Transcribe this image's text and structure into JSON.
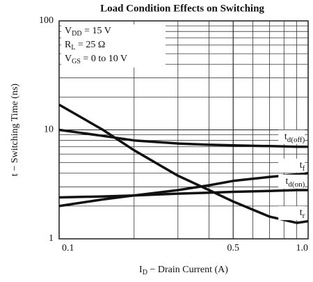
{
  "chart_data": {
    "type": "line",
    "title": "Load Condition Effects on Switching",
    "xlabel": {
      "symbol": "I",
      "sub": "D",
      "text": "  −  Drain Current (A)"
    },
    "ylabel": "t  −  Switching Time (ns)",
    "annotations": [
      {
        "symbol": "V",
        "sub": "DD",
        "text": " = 15 V"
      },
      {
        "symbol": "R",
        "sub": "L",
        "text": " = 25 Ω"
      },
      {
        "symbol": "V",
        "sub": "GS",
        "text": " = 0 to 10 V"
      }
    ],
    "xscale": "log",
    "yscale": "log",
    "grid": true,
    "minor_grid": true,
    "xlim": [
      0.1,
      1.0
    ],
    "ylim": [
      1,
      100
    ],
    "xticks": [
      0.1,
      0.5,
      {
        "value": 1.0,
        "label": "1.0"
      }
    ],
    "yticks": [
      1,
      10,
      100
    ],
    "x": [
      0.1,
      0.15,
      0.2,
      0.3,
      0.4,
      0.5,
      0.7,
      0.9,
      1.0
    ],
    "series": [
      {
        "name": "td(off)",
        "color": "#111111",
        "values": [
          10,
          8.8,
          8.0,
          7.5,
          7.3,
          7.2,
          7.1,
          7.0,
          7.0
        ]
      },
      {
        "name": "tf",
        "color": "#111111",
        "values": [
          2.0,
          2.3,
          2.5,
          2.8,
          3.1,
          3.4,
          3.7,
          3.9,
          4.0
        ]
      },
      {
        "name": "td(on)",
        "color": "#111111",
        "values": [
          2.4,
          2.45,
          2.5,
          2.6,
          2.65,
          2.7,
          2.75,
          2.8,
          2.8
        ]
      },
      {
        "name": "tr",
        "color": "#111111",
        "values": [
          17,
          10,
          6.5,
          3.8,
          2.8,
          2.2,
          1.6,
          1.4,
          1.45
        ]
      }
    ]
  }
}
